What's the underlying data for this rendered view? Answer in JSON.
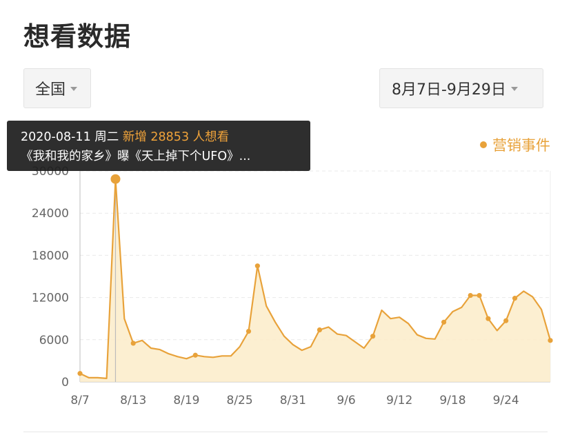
{
  "page": {
    "title": "想看数据"
  },
  "filters": {
    "region": "全国",
    "date_range": "8月7日-9月29日"
  },
  "tooltip": {
    "date": "2020-08-11 周二",
    "headline": "新增 28853 人想看",
    "event": "《我和我的家乡》曝《天上掉下个UFO》..."
  },
  "legend": {
    "label": "营销事件"
  },
  "colors": {
    "accent": "#e8a23a",
    "fill": "#fbecc9",
    "tooltip_bg": "#1e1e1e"
  },
  "chart_data": {
    "type": "area",
    "title": "",
    "xlabel": "",
    "ylabel": "",
    "ylim": [
      0,
      30000
    ],
    "y_ticks": [
      "0",
      "6000",
      "12000",
      "18000",
      "24000",
      "30000"
    ],
    "x_ticks": [
      "8/7",
      "8/13",
      "8/19",
      "8/25",
      "8/31",
      "9/6",
      "9/12",
      "9/18",
      "9/24"
    ],
    "x_tick_days": [
      0,
      6,
      12,
      18,
      24,
      30,
      36,
      42,
      48
    ],
    "series": [
      {
        "days": [
          0,
          1,
          2,
          3,
          4,
          5,
          6,
          7,
          8,
          9,
          10,
          11,
          12,
          13,
          14,
          15,
          16,
          17,
          18,
          19,
          20,
          21,
          22,
          23,
          24,
          25,
          26,
          27,
          28,
          29,
          30,
          31,
          32,
          33,
          34,
          35,
          36,
          37,
          38,
          39,
          40,
          41,
          42,
          43,
          44,
          45,
          46,
          47,
          48,
          49,
          50,
          51,
          52,
          53
        ],
        "values": [
          1200,
          600,
          600,
          500,
          28853,
          9000,
          5500,
          5900,
          4800,
          4600,
          4000,
          3600,
          3300,
          3800,
          3600,
          3500,
          3700,
          3700,
          5000,
          7200,
          16500,
          10800,
          8500,
          6500,
          5300,
          4500,
          5000,
          7400,
          7800,
          6800,
          6600,
          5700,
          4800,
          6500,
          10200,
          9000,
          9200,
          8300,
          6700,
          6200,
          6100,
          8500,
          10000,
          10600,
          12300,
          12300,
          9000,
          7300,
          8700,
          11900,
          12900,
          12100,
          10300,
          5900
        ],
        "highlight_days": [
          0,
          4,
          6,
          13,
          19,
          20,
          27,
          33,
          41,
          44,
          45,
          46,
          48,
          49,
          53
        ],
        "selected_day": 4
      }
    ],
    "grid": true,
    "legend_position": "top-right"
  }
}
